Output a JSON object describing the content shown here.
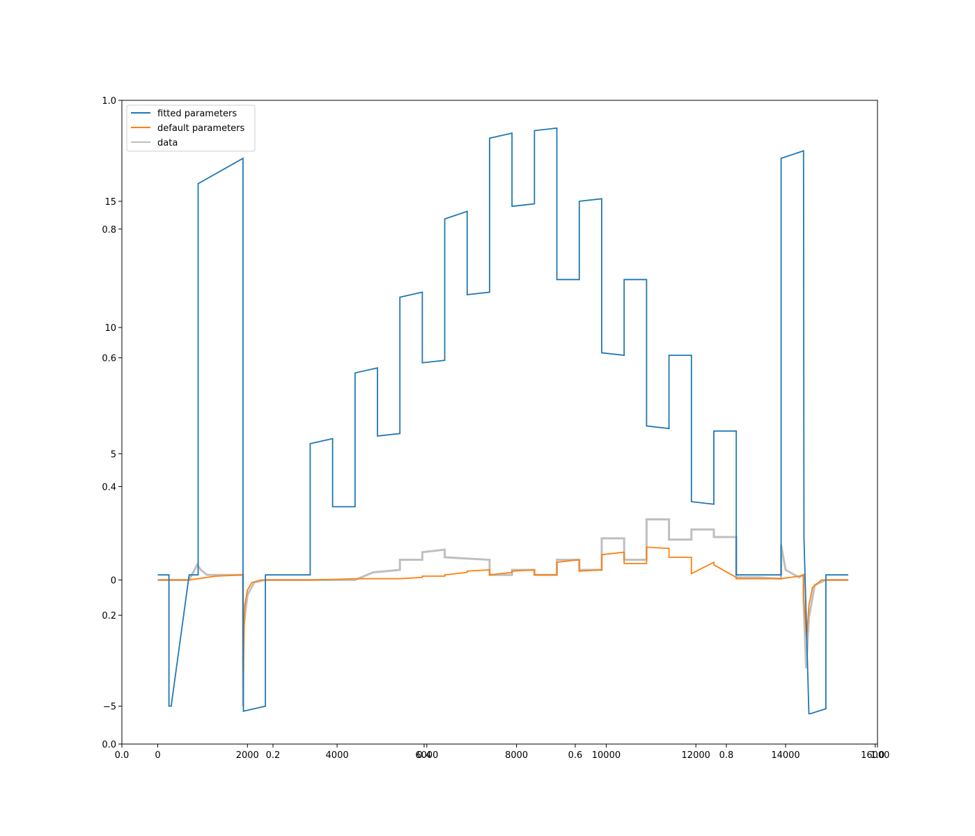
{
  "chart_data": {
    "type": "line",
    "title": "",
    "xlabel": "",
    "ylabel": "",
    "xlim": [
      -800,
      16050
    ],
    "ylim": [
      -6.5,
      19
    ],
    "grid": false,
    "legend": {
      "placement": "top-left",
      "entries": [
        {
          "label": "fitted parameters",
          "color": "#1f77b4"
        },
        {
          "label": "default parameters",
          "color": "#ff7f0e"
        },
        {
          "label": "data",
          "color": "#bfbfbf"
        }
      ]
    },
    "x_ticks": [
      {
        "value": 0,
        "label": "0"
      },
      {
        "value": 2000,
        "label": "2000"
      },
      {
        "value": 4000,
        "label": "4000"
      },
      {
        "value": 6000,
        "label": "6000"
      },
      {
        "value": 8000,
        "label": "8000"
      },
      {
        "value": 10000,
        "label": "10000"
      },
      {
        "value": 12000,
        "label": "12000"
      },
      {
        "value": 14000,
        "label": "14000"
      },
      {
        "value": 16000,
        "label": "16000"
      }
    ],
    "y_ticks": [
      {
        "value": -5,
        "label": "−5"
      },
      {
        "value": 0,
        "label": "0"
      },
      {
        "value": 5,
        "label": "5"
      },
      {
        "value": 10,
        "label": "10"
      },
      {
        "value": 15,
        "label": "15"
      }
    ],
    "background_axes": {
      "x_ticks": [
        "0.0",
        "0.2",
        "0.4",
        "0.6",
        "0.8",
        "1.0"
      ],
      "y_ticks": [
        "0.0",
        "0.2",
        "0.4",
        "0.6",
        "0.8",
        "1.0"
      ]
    },
    "series": [
      {
        "name": "fitted parameters",
        "color": "#1f77b4",
        "x": [
          0,
          250,
          250,
          300,
          700,
          900,
          900,
          1900,
          1900,
          1910,
          2400,
          2400,
          3400,
          3400,
          3900,
          3900,
          4400,
          4400,
          4900,
          4900,
          5400,
          5400,
          5900,
          5900,
          6400,
          6400,
          6900,
          6900,
          7400,
          7400,
          7900,
          7900,
          8400,
          8400,
          8900,
          8900,
          9400,
          9400,
          9900,
          9900,
          10400,
          10400,
          10900,
          10900,
          11400,
          11400,
          11900,
          11900,
          12400,
          12400,
          12900,
          12900,
          13900,
          13900,
          14400,
          14410,
          14520,
          14550,
          14900,
          14900,
          15400
        ],
        "y": [
          0.2,
          0.2,
          -5.0,
          -5.0,
          0.2,
          0.2,
          15.7,
          16.7,
          0.2,
          -5.2,
          -5.0,
          0.2,
          0.2,
          5.4,
          5.6,
          2.9,
          2.9,
          8.2,
          8.4,
          5.7,
          5.8,
          11.2,
          11.4,
          8.6,
          8.7,
          14.3,
          14.6,
          11.3,
          11.4,
          17.5,
          17.7,
          14.8,
          14.9,
          17.8,
          17.9,
          11.9,
          11.9,
          15.0,
          15.1,
          9.0,
          8.9,
          11.9,
          11.9,
          6.1,
          6.0,
          8.9,
          8.9,
          3.1,
          3.0,
          5.9,
          5.9,
          0.2,
          0.2,
          16.7,
          17.0,
          1.7,
          -5.3,
          -5.3,
          -5.1,
          0.2,
          0.2
        ]
      },
      {
        "name": "default parameters",
        "color": "#ff7f0e",
        "x": [
          0,
          700,
          900,
          1300,
          1900,
          1900,
          1940,
          2000,
          2100,
          2300,
          2600,
          3400,
          4400,
          5400,
          5900,
          5900,
          6400,
          6400,
          6900,
          6900,
          7400,
          7400,
          7900,
          7900,
          8400,
          8400,
          8900,
          8900,
          9400,
          9400,
          9900,
          9900,
          10400,
          10400,
          10900,
          10900,
          11400,
          11400,
          11900,
          11900,
          12400,
          12400,
          12900,
          12900,
          13400,
          13900,
          14300,
          14400,
          14400,
          14470,
          14520,
          14600,
          14800,
          15000,
          15400
        ],
        "y": [
          0.0,
          0.0,
          0.05,
          0.15,
          0.2,
          -3.6,
          -1.0,
          -0.4,
          -0.1,
          0.0,
          0.0,
          0.0,
          0.05,
          0.05,
          0.1,
          0.15,
          0.15,
          0.2,
          0.3,
          0.35,
          0.4,
          0.2,
          0.3,
          0.35,
          0.4,
          0.2,
          0.2,
          0.7,
          0.8,
          0.35,
          0.4,
          1.0,
          1.1,
          0.65,
          0.65,
          1.3,
          1.25,
          0.9,
          0.9,
          0.25,
          0.7,
          0.6,
          0.1,
          0.05,
          0.05,
          0.05,
          0.15,
          0.2,
          -0.6,
          -2.3,
          -1.0,
          -0.3,
          0.0,
          0.0,
          0.0
        ]
      },
      {
        "name": "data",
        "color": "#bfbfbf",
        "x": [
          0,
          700,
          880,
          960,
          1100,
          1900,
          1900,
          1920,
          2000,
          2150,
          2400,
          3400,
          4400,
          4800,
          5400,
          5400,
          5900,
          5900,
          6400,
          6400,
          6900,
          6900,
          7400,
          7400,
          7900,
          7900,
          8400,
          8400,
          8900,
          8900,
          9400,
          9400,
          9900,
          9900,
          10400,
          10400,
          10900,
          10900,
          11400,
          11400,
          11900,
          11900,
          12400,
          12400,
          12900,
          12900,
          13400,
          13900,
          13900,
          14000,
          14300,
          14400,
          14400,
          14460,
          14520,
          14650,
          14900,
          15400
        ],
        "y": [
          0.0,
          0.0,
          0.6,
          0.4,
          0.2,
          0.2,
          -5.0,
          -1.8,
          -0.6,
          -0.1,
          0.0,
          0.0,
          0.0,
          0.3,
          0.4,
          0.8,
          0.8,
          1.1,
          1.2,
          0.9,
          0.85,
          0.85,
          0.8,
          0.2,
          0.2,
          0.4,
          0.4,
          0.2,
          0.2,
          0.8,
          0.8,
          0.4,
          0.4,
          1.65,
          1.65,
          0.8,
          0.8,
          2.4,
          2.4,
          1.6,
          1.6,
          2.0,
          2.0,
          1.7,
          1.7,
          0.1,
          0.1,
          0.05,
          1.4,
          0.4,
          0.1,
          0.2,
          -0.8,
          -3.5,
          -1.5,
          -0.2,
          0.0,
          0.0
        ]
      }
    ]
  }
}
